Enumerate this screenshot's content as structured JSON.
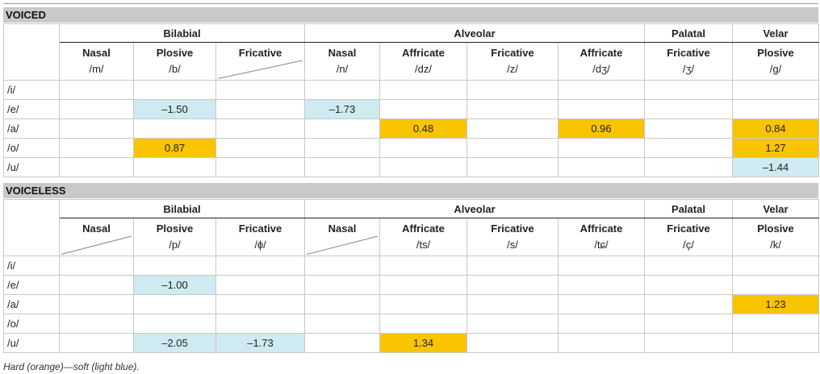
{
  "voiced": {
    "label": "VOICED",
    "groups": [
      "Bilabial",
      "Alveolar",
      "Palatal",
      "Velar"
    ],
    "manners": [
      "Nasal",
      "Plosive",
      "Fricative",
      "Nasal",
      "Affricate",
      "Fricative",
      "Affricate",
      "Fricative",
      "Plosive"
    ],
    "ipa": [
      "/m/",
      "/b/",
      "",
      "/n/",
      "/dz/",
      "/z/",
      "/dʒ/",
      "/ʒ/",
      "/g/"
    ],
    "rows": [
      {
        "vowel": "/i/",
        "cells": [
          "",
          "",
          "",
          "",
          "",
          "",
          "",
          "",
          ""
        ]
      },
      {
        "vowel": "/e/",
        "cells": [
          "",
          "–1.50",
          "",
          "–1.73",
          "",
          "",
          "",
          "",
          ""
        ]
      },
      {
        "vowel": "/a/",
        "cells": [
          "",
          "",
          "",
          "",
          "0.48",
          "",
          "0.96",
          "",
          "0.84"
        ]
      },
      {
        "vowel": "/o/",
        "cells": [
          "",
          "0.87",
          "",
          "",
          "",
          "",
          "",
          "",
          "1.27"
        ]
      },
      {
        "vowel": "/u/",
        "cells": [
          "",
          "",
          "",
          "",
          "",
          "",
          "",
          "",
          "–1.44"
        ]
      }
    ]
  },
  "voiceless": {
    "label": "VOICELESS",
    "groups": [
      "Bilabial",
      "Alveolar",
      "Palatal",
      "Velar"
    ],
    "manners": [
      "Nasal",
      "Plosive",
      "Fricative",
      "Nasal",
      "Affricate",
      "Fricative",
      "Affricate",
      "Fricative",
      "Plosive"
    ],
    "ipa": [
      "",
      "/p/",
      "/ɸ/",
      "",
      "/ts/",
      "/s/",
      "/tɕ/",
      "/ç/",
      "/k/"
    ],
    "rows": [
      {
        "vowel": "/i/",
        "cells": [
          "",
          "",
          "",
          "",
          "",
          "",
          "",
          "",
          ""
        ]
      },
      {
        "vowel": "/e/",
        "cells": [
          "",
          "–1.00",
          "",
          "",
          "",
          "",
          "",
          "",
          ""
        ]
      },
      {
        "vowel": "/a/",
        "cells": [
          "",
          "",
          "",
          "",
          "",
          "",
          "",
          "",
          "1.23"
        ]
      },
      {
        "vowel": "/o/",
        "cells": [
          "",
          "",
          "",
          "",
          "",
          "",
          "",
          "",
          ""
        ]
      },
      {
        "vowel": "/u/",
        "cells": [
          "",
          "–2.05",
          "–1.73",
          "",
          "1.34",
          "",
          "",
          "",
          ""
        ]
      }
    ]
  },
  "note": "Hard (orange)—soft (light blue).",
  "colors": {
    "hard": "#f9c400",
    "soft": "#cfeaf1",
    "band": "#c9c9c9"
  }
}
